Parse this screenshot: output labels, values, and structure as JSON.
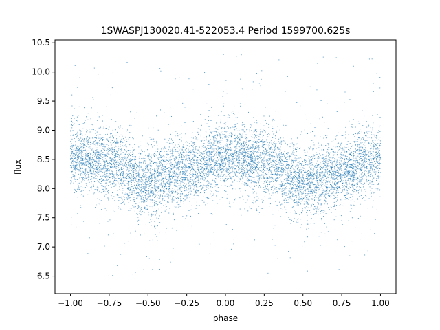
{
  "chart_data": {
    "type": "scatter",
    "title": "1SWASPJ130020.41-522053.4 Period 1599700.625s",
    "xlabel": "phase",
    "ylabel": "flux",
    "xlim": [
      -1.1,
      1.1
    ],
    "ylim": [
      6.2,
      10.55
    ],
    "xticks": [
      -1.0,
      -0.75,
      -0.5,
      -0.25,
      0.0,
      0.25,
      0.5,
      0.75,
      1.0
    ],
    "xtick_labels": [
      "−1.00",
      "−0.75",
      "−0.50",
      "−0.25",
      "0.00",
      "0.25",
      "0.50",
      "0.75",
      "1.00"
    ],
    "yticks": [
      6.5,
      7.0,
      7.5,
      8.0,
      8.5,
      9.0,
      9.5,
      10.0,
      10.5
    ],
    "ytick_labels": [
      "6.5",
      "7.0",
      "7.5",
      "8.0",
      "8.5",
      "9.0",
      "9.5",
      "10.0",
      "10.5"
    ],
    "grid": false,
    "marker_color": "#1f77b4",
    "series": [
      {
        "phase_range": [
          -1.0,
          1.0
        ],
        "trend_phase": [
          -1.0,
          -0.75,
          -0.5,
          -0.25,
          0.0,
          0.25,
          0.5,
          0.75,
          1.0
        ],
        "trend_flux": [
          8.55,
          8.45,
          8.1,
          8.3,
          8.55,
          8.45,
          8.1,
          8.3,
          8.55
        ],
        "flux_spread_core": [
          7.7,
          9.2
        ],
        "flux_outlier_range": [
          6.45,
          10.3
        ]
      }
    ]
  }
}
